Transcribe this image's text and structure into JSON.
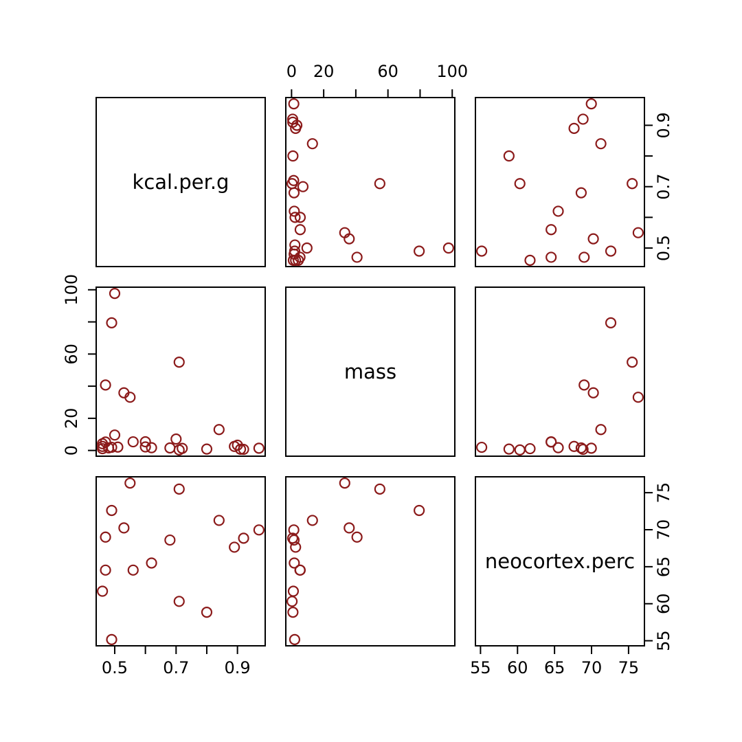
{
  "figure": {
    "background": "#FFFFFF",
    "description": "R pairs() scatterplot matrix of milk composition data"
  },
  "chart_data": {
    "type": "scatter",
    "subtype": "pairs_matrix",
    "title": "",
    "grid": false,
    "legend": null,
    "variables": [
      {
        "name": "kcal.per.g",
        "axis_range": [
          0.4396,
          0.9904
        ],
        "ticks": [
          0.5,
          0.6,
          0.7,
          0.8,
          0.9
        ],
        "tick_labels": [
          "0.5",
          "",
          "0.7",
          "",
          "0.9"
        ]
      },
      {
        "name": "mass",
        "axis_range": [
          -3.576,
          101.616
        ],
        "ticks": [
          0,
          20,
          40,
          60,
          80,
          100
        ],
        "tick_labels": [
          "0",
          "20",
          "",
          "60",
          "",
          "100"
        ]
      },
      {
        "name": "neocortex.perc",
        "axis_range": [
          54.3144,
          77.1456
        ],
        "ticks": [
          55,
          60,
          65,
          70,
          75
        ],
        "tick_labels": [
          "55",
          "60",
          "65",
          "70",
          "75"
        ]
      }
    ],
    "points_columns": [
      "kcal.per.g",
      "mass",
      "neocortex.perc"
    ],
    "points": [
      [
        0.49,
        1.95,
        55.16
      ],
      [
        0.51,
        2.09,
        null
      ],
      [
        0.46,
        2.51,
        null
      ],
      [
        0.48,
        1.62,
        null
      ],
      [
        0.6,
        2.19,
        null
      ],
      [
        0.47,
        5.25,
        64.54
      ],
      [
        0.56,
        5.37,
        64.54
      ],
      [
        0.89,
        2.51,
        67.64
      ],
      [
        0.91,
        0.75,
        null
      ],
      [
        0.92,
        0.68,
        68.85
      ],
      [
        0.8,
        0.86,
        58.85
      ],
      [
        0.46,
        1.1,
        61.69
      ],
      [
        0.71,
        0.32,
        60.32
      ],
      [
        0.68,
        1.55,
        68.6
      ],
      [
        0.97,
        1.4,
        69.97
      ],
      [
        0.9,
        3.3,
        null
      ],
      [
        0.7,
        7.1,
        null
      ],
      [
        0.72,
        1.3,
        null
      ],
      [
        0.84,
        13.0,
        71.26
      ],
      [
        0.62,
        1.7,
        65.5
      ],
      [
        0.6,
        5.4,
        null
      ],
      [
        0.46,
        4.2,
        null
      ],
      [
        0.5,
        9.6,
        null
      ],
      [
        0.55,
        33.11,
        76.3
      ],
      [
        0.53,
        35.88,
        70.24
      ],
      [
        0.47,
        40.74,
        69.0
      ],
      [
        0.71,
        54.95,
        75.49
      ],
      [
        0.49,
        79.43,
        72.6
      ],
      [
        0.5,
        97.72,
        null
      ]
    ],
    "style": {
      "point_color": "#8B1A1A",
      "point_shape": "open-circle",
      "axis_color": "#000000",
      "background": "#FFFFFF"
    },
    "axes_layout": {
      "top": [
        {
          "row": 0,
          "col": 1
        }
      ],
      "left": [
        {
          "row": 1,
          "col": 0
        }
      ],
      "right": [
        {
          "row": 0,
          "col": 2
        },
        {
          "row": 2,
          "col": 2
        }
      ],
      "bottom": [
        {
          "row": 2,
          "col": 0
        },
        {
          "row": 2,
          "col": 2
        }
      ]
    }
  }
}
